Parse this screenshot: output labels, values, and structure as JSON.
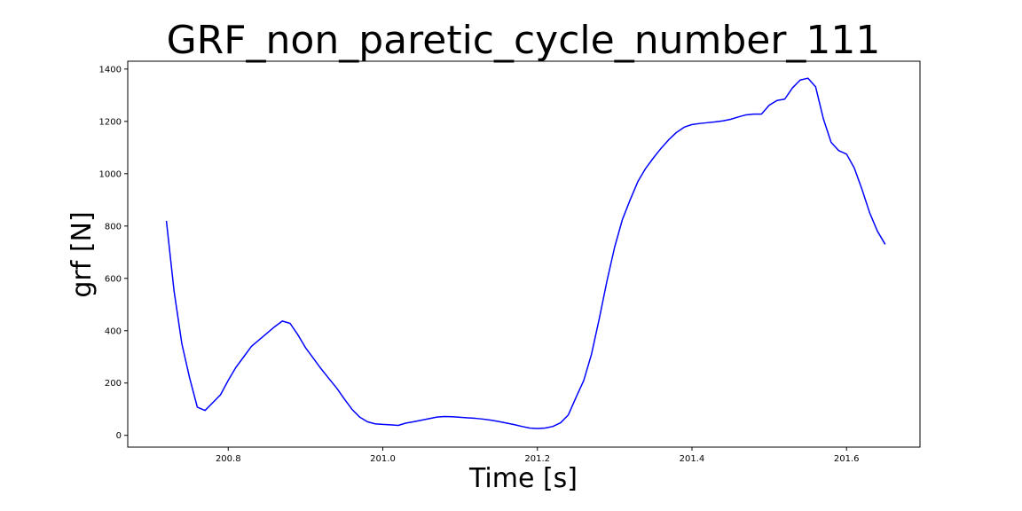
{
  "chart_data": {
    "type": "line",
    "title": "GRF_non_paretic_cycle_number_111",
    "xlabel": "Time [s]",
    "ylabel": "grf [N]",
    "xlim": [
      200.67,
      201.695
    ],
    "ylim": [
      -45,
      1430
    ],
    "xticks": [
      200.8,
      201.0,
      201.2,
      201.4,
      201.6
    ],
    "xtick_labels": [
      "200.8",
      "201.0",
      "201.2",
      "201.4",
      "201.6"
    ],
    "yticks": [
      0,
      200,
      400,
      600,
      800,
      1000,
      1200,
      1400
    ],
    "ytick_labels": [
      "0",
      "200",
      "400",
      "600",
      "800",
      "1000",
      "1200",
      "1400"
    ],
    "grid": false,
    "series_color": "#0000ff",
    "series": [
      {
        "x": [
          200.72,
          200.73,
          200.74,
          200.75,
          200.76,
          200.77,
          200.78,
          200.79,
          200.8,
          200.81,
          200.82,
          200.83,
          200.84,
          200.85,
          200.86,
          200.87,
          200.88,
          200.89,
          200.9,
          200.91,
          200.92,
          200.93,
          200.94,
          200.95,
          200.96,
          200.97,
          200.98,
          200.99,
          201.0,
          201.01,
          201.02,
          201.03,
          201.04,
          201.05,
          201.06,
          201.07,
          201.08,
          201.09,
          201.1,
          201.11,
          201.12,
          201.13,
          201.14,
          201.15,
          201.16,
          201.17,
          201.18,
          201.19,
          201.2,
          201.21,
          201.22,
          201.23,
          201.24,
          201.25,
          201.26,
          201.27,
          201.28,
          201.29,
          201.3,
          201.31,
          201.32,
          201.33,
          201.34,
          201.35,
          201.36,
          201.37,
          201.38,
          201.39,
          201.4,
          201.41,
          201.42,
          201.43,
          201.44,
          201.45,
          201.46,
          201.47,
          201.48,
          201.49,
          201.5,
          201.51,
          201.52,
          201.53,
          201.54,
          201.55,
          201.56,
          201.57,
          201.58,
          201.59,
          201.6,
          201.61,
          201.62,
          201.63,
          201.64,
          201.65
        ],
        "y": [
          820,
          550,
          350,
          220,
          108,
          95,
          125,
          155,
          210,
          260,
          300,
          340,
          365,
          390,
          415,
          437,
          428,
          385,
          335,
          295,
          255,
          218,
          182,
          140,
          100,
          70,
          52,
          44,
          42,
          40,
          38,
          47,
          52,
          58,
          64,
          70,
          72,
          71,
          69,
          67,
          65,
          62,
          58,
          53,
          47,
          41,
          34,
          28,
          26,
          28,
          34,
          48,
          78,
          145,
          210,
          310,
          445,
          590,
          720,
          825,
          900,
          970,
          1020,
          1060,
          1097,
          1130,
          1158,
          1178,
          1188,
          1192,
          1195,
          1198,
          1202,
          1208,
          1217,
          1225,
          1228,
          1228,
          1262,
          1280,
          1285,
          1328,
          1358,
          1365,
          1332,
          1210,
          1120,
          1088,
          1075,
          1022,
          940,
          850,
          780,
          730
        ]
      }
    ]
  }
}
